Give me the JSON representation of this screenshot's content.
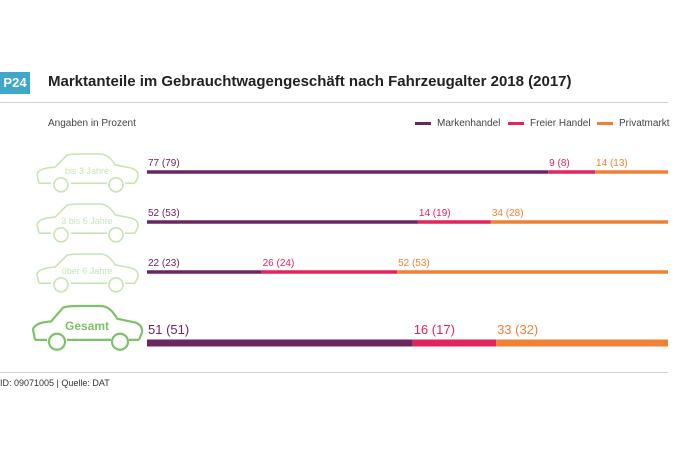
{
  "badge": "P24",
  "title": "Marktanteile im Gebrauchtwagengeschäft nach Fahrzeugalter 2018 (2017)",
  "subtitle": "Angaben in Prozent",
  "source": "ID: 09071005 | Quelle: DAT",
  "colors": {
    "Markenhandel": "#6b2660",
    "Freier Handel": "#e1245a",
    "Privatmarkt": "#ee8136",
    "car_light": "#c9e4b4",
    "car_dark": "#7fc06a"
  },
  "legend": [
    {
      "name": "Markenhandel",
      "color": "#6b2660"
    },
    {
      "name": "Freier Handel",
      "color": "#e1245a"
    },
    {
      "name": "Privatmarkt",
      "color": "#ee8136"
    }
  ],
  "chart_data": {
    "type": "bar",
    "orientation": "horizontal-stacked",
    "categories": [
      "bis 3 Jahre",
      "3 bis 6 Jahre",
      "über 6 Jahre",
      "Gesamt"
    ],
    "series": [
      {
        "name": "Markenhandel",
        "values": [
          77,
          52,
          22,
          51
        ],
        "labels": [
          "77 (79)",
          "52 (53)",
          "22 (23)",
          "51 (51)"
        ]
      },
      {
        "name": "Freier Handel",
        "values": [
          9,
          14,
          26,
          16
        ],
        "labels": [
          "9 (8)",
          "14 (19)",
          "26 (24)",
          "16 (17)"
        ]
      },
      {
        "name": "Privatmarkt",
        "values": [
          14,
          34,
          52,
          33
        ],
        "labels": [
          "14 (13)",
          "34 (28)",
          "52 (53)",
          "33 (32)"
        ]
      }
    ],
    "xlim": [
      0,
      100
    ],
    "grid": false,
    "legend_position": "top-right"
  }
}
